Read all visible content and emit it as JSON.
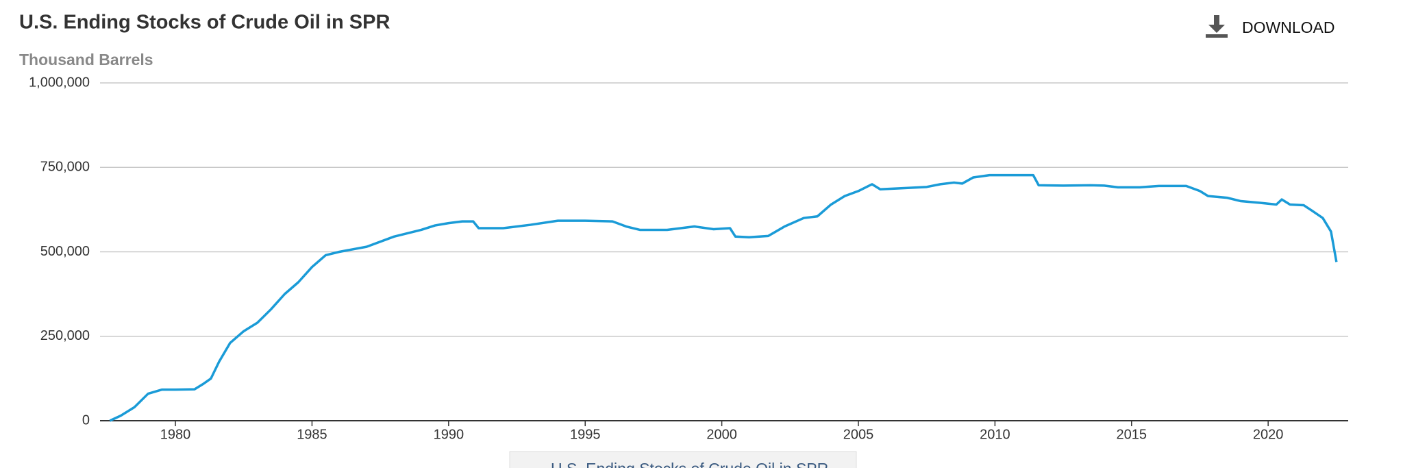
{
  "download_label": "DOWNLOAD",
  "chart_data": {
    "type": "line",
    "title": "U.S. Ending Stocks of Crude Oil in SPR",
    "y_label": "Thousand Barrels",
    "x": [
      1977.6,
      1978.0,
      1978.5,
      1979.0,
      1979.5,
      1980.0,
      1980.7,
      1981.0,
      1981.3,
      1981.6,
      1982.0,
      1982.5,
      1983.0,
      1983.5,
      1984.0,
      1984.5,
      1985.0,
      1985.5,
      1986.0,
      1987.0,
      1988.0,
      1989.0,
      1989.5,
      1990.0,
      1990.5,
      1990.9,
      1991.1,
      1992.0,
      1993.0,
      1994.0,
      1995.0,
      1996.0,
      1996.5,
      1997.0,
      1998.0,
      1999.0,
      1999.7,
      2000.3,
      2000.5,
      2001.0,
      2001.7,
      2002.3,
      2003.0,
      2003.5,
      2004.0,
      2004.5,
      2005.0,
      2005.5,
      2005.8,
      2006.5,
      2007.5,
      2008.0,
      2008.5,
      2008.8,
      2009.2,
      2009.8,
      2010.5,
      2011.4,
      2011.6,
      2012.5,
      2013.5,
      2014.0,
      2014.5,
      2015.3,
      2016.0,
      2017.0,
      2017.5,
      2017.8,
      2018.5,
      2019.0,
      2019.7,
      2020.3,
      2020.5,
      2020.8,
      2021.3,
      2021.6,
      2022.0,
      2022.3,
      2022.5
    ],
    "series": [
      {
        "name": "U.S. Ending Stocks of Crude Oil in SPR",
        "color": "#1a9bd7",
        "values": [
          0,
          15000,
          40000,
          80000,
          92000,
          92000,
          93000,
          108000,
          125000,
          175000,
          230000,
          265000,
          290000,
          330000,
          375000,
          410000,
          455000,
          490000,
          500000,
          515000,
          545000,
          565000,
          578000,
          585000,
          590000,
          590000,
          570000,
          570000,
          580000,
          592000,
          592000,
          590000,
          575000,
          565000,
          565000,
          575000,
          567000,
          570000,
          545000,
          543000,
          547000,
          575000,
          600000,
          605000,
          640000,
          665000,
          680000,
          700000,
          685000,
          688000,
          692000,
          700000,
          705000,
          702000,
          720000,
          727000,
          727000,
          727000,
          697000,
          696000,
          697000,
          696000,
          691000,
          691000,
          695000,
          695000,
          680000,
          665000,
          660000,
          650000,
          645000,
          640000,
          655000,
          640000,
          638000,
          622000,
          600000,
          560000,
          470000
        ]
      }
    ],
    "xlim": [
      1977.24,
      2022.93
    ],
    "xticks": [
      1980,
      1985,
      1990,
      1995,
      2000,
      2005,
      2010,
      2015,
      2020
    ],
    "ylim": [
      0,
      1000000
    ],
    "yticks": [
      0,
      {
        "value": 250000,
        "label": "250,000"
      },
      {
        "value": 500000,
        "label": "500,000"
      },
      {
        "value": 750000,
        "label": "750,000"
      },
      {
        "value": 1000000,
        "label": "1,000,000"
      }
    ],
    "grid": true
  }
}
